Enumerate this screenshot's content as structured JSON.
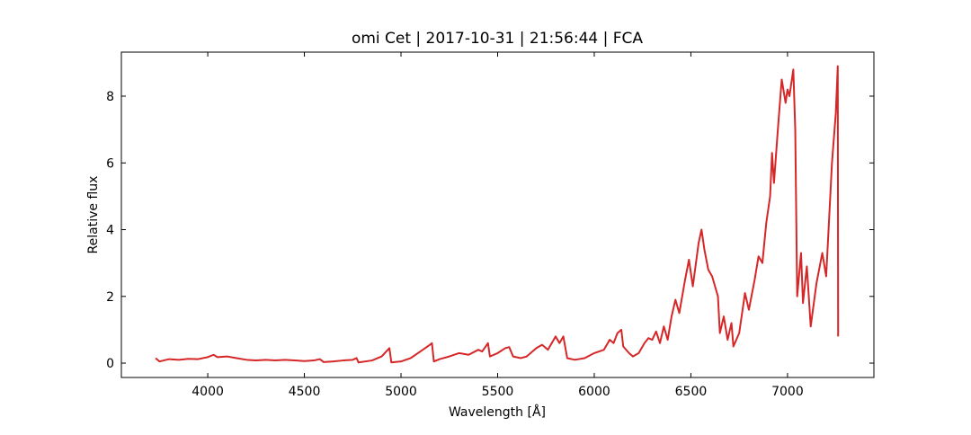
{
  "chart_data": {
    "type": "line",
    "title": "omi Cet | 2017-10-31 | 21:56:44 | FCA",
    "x_label": "Wavelength [Å]",
    "y_label": "Relative flux",
    "xlim": [
      3553,
      7447
    ],
    "ylim": [
      -0.43,
      9.32
    ],
    "xticks": [
      4000,
      4500,
      5000,
      5500,
      6000,
      6500,
      7000
    ],
    "yticks": [
      0,
      2,
      4,
      6,
      8
    ],
    "series": [
      {
        "color": "#d62728",
        "x": [
          3730,
          3750,
          3800,
          3850,
          3900,
          3950,
          4000,
          4030,
          4050,
          4100,
          4150,
          4200,
          4250,
          4300,
          4350,
          4400,
          4450,
          4500,
          4550,
          4580,
          4600,
          4650,
          4700,
          4750,
          4770,
          4780,
          4850,
          4900,
          4940,
          4950,
          5000,
          5050,
          5100,
          5150,
          5160,
          5170,
          5200,
          5250,
          5300,
          5350,
          5400,
          5420,
          5450,
          5460,
          5500,
          5540,
          5560,
          5580,
          5620,
          5650,
          5700,
          5730,
          5760,
          5800,
          5820,
          5840,
          5860,
          5900,
          5950,
          6000,
          6050,
          6080,
          6100,
          6120,
          6140,
          6150,
          6180,
          6200,
          6230,
          6260,
          6280,
          6300,
          6320,
          6340,
          6360,
          6380,
          6400,
          6420,
          6440,
          6470,
          6490,
          6510,
          6540,
          6555,
          6570,
          6590,
          6610,
          6640,
          6650,
          6670,
          6690,
          6710,
          6720,
          6750,
          6780,
          6800,
          6830,
          6850,
          6870,
          6890,
          6910,
          6920,
          6930,
          6950,
          6970,
          6990,
          7000,
          7010,
          7030,
          7040,
          7050,
          7070,
          7080,
          7100,
          7120,
          7150,
          7180,
          7200,
          7230,
          7250,
          7260,
          7262
        ],
        "values": [
          0.15,
          0.05,
          0.12,
          0.1,
          0.13,
          0.12,
          0.18,
          0.25,
          0.18,
          0.2,
          0.15,
          0.1,
          0.08,
          0.1,
          0.08,
          0.1,
          0.08,
          0.06,
          0.08,
          0.12,
          0.03,
          0.05,
          0.08,
          0.1,
          0.15,
          0.02,
          0.08,
          0.2,
          0.45,
          0.02,
          0.05,
          0.15,
          0.35,
          0.55,
          0.6,
          0.05,
          0.12,
          0.2,
          0.3,
          0.25,
          0.4,
          0.35,
          0.6,
          0.2,
          0.3,
          0.45,
          0.48,
          0.2,
          0.15,
          0.2,
          0.45,
          0.55,
          0.4,
          0.8,
          0.6,
          0.8,
          0.15,
          0.1,
          0.15,
          0.3,
          0.4,
          0.7,
          0.6,
          0.9,
          1.0,
          0.5,
          0.3,
          0.2,
          0.3,
          0.6,
          0.75,
          0.7,
          0.95,
          0.6,
          1.1,
          0.7,
          1.4,
          1.9,
          1.5,
          2.5,
          3.1,
          2.3,
          3.6,
          4.0,
          3.4,
          2.8,
          2.6,
          2.0,
          0.9,
          1.4,
          0.7,
          1.2,
          0.5,
          0.9,
          2.1,
          1.6,
          2.5,
          3.2,
          3.0,
          4.2,
          5.0,
          6.3,
          5.4,
          7.0,
          8.5,
          7.8,
          8.2,
          8.0,
          8.8,
          7.0,
          2.0,
          3.3,
          1.8,
          2.9,
          1.1,
          2.4,
          3.3,
          2.6,
          6.0,
          7.5,
          8.9,
          0.8
        ]
      }
    ]
  }
}
